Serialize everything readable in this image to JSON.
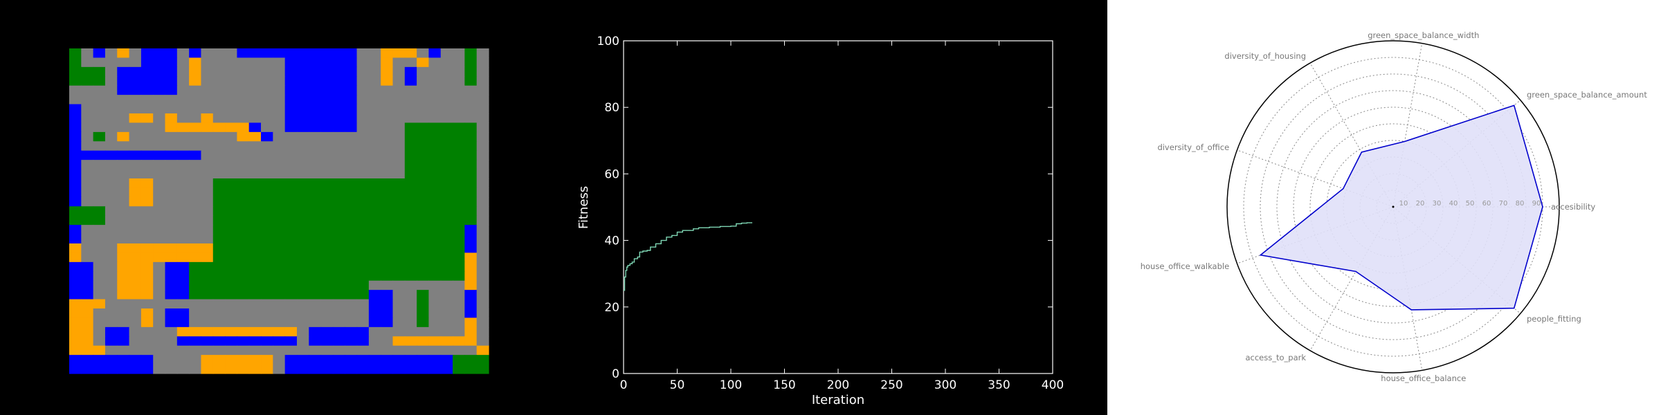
{
  "colors": {
    "road": "#808080",
    "housing": "#0000ff",
    "office": "#ffa500",
    "green": "#008000",
    "line": "#7fd7b5",
    "radar_line": "#0000cc",
    "radar_fill": "#e0e0f8"
  },
  "grid_map": {
    "legend": {
      "G": "green",
      "B": "housing",
      "O": "office",
      "R": "road"
    },
    "rows": [
      "GRBRORBBBRBRRRBBBBBBBBBBRROOORBRRG",
      "GRRRRRBBBRORRRRRRRBBBBBBRRORRORRRG",
      "GGGRBBBBBRORRRRRRRBBBBBBRRORBRRRRG",
      "GGGRBBBBBRORRRRRRRBBBBBBRRORBRRRRG",
      "RRRRBBBBBRRRRRRRRRBBBBBBRRRRRRRRRR",
      "RRRRRRRRRRRRRRRRRRBBBBBBRRRRRRRRRR",
      "BRRRRRRRRRRRRRRRRRBBBBBBRRRRRRRRRR",
      "BRRRROORORRORRRRRRBBBBBBRRRRRRRRRR",
      "BRRRRRRROOOOOOOBRRBBBBBBRRRRGGGGGG",
      "BRGRORRRRRRRRROOBRRRRRRRRRRRGGGGGG",
      "BRRRRRRRRRRRRRRRRRRRRRRRRRRRGGGGGG",
      "BBBBBBBBBBBRRRRRRRRRRRRRRRRRGGGGGG",
      "BRRRRRRRRRRRRRRRRRRRRRRRRRRRGGGGGG",
      "BRRRRRRRRRRRRRRRRRRRRRRRRRRRGGGGGG",
      "BRRRROORRRRRGGGGGGGGGGGGGGGGGGGGGG",
      "BRRRROORRRRRGGGGGGGGGGGGGGGGGGGGGG",
      "BRRRROORRRRRGGGGGGGGGGGGGGGGGGGGGG",
      "GGGRRRRRRRRRGGGGGGGGGGGGGGGGGGGGGG",
      "GGGRRRRRRRRRGGGGGGGGGGGGGGGGGGGGGG",
      "BRRRRRRRRRRRGGGGGGGGGGGGGGGGGGGGGB",
      "BRRRRRRRRRRRGGGGGGGGGGGGGGGGGGGGGB",
      "ORRROOOOOOOOGGGGGGGGGGGGGGGGGGGGGB",
      "ORRROOOOOOOOGGGGGGGGGGGGGGGGGGGGGO",
      "BBRROOORBBGGGGGGGGGGGGGGGGGGGGGGGO",
      "BBRROOORBBGGGGGGGGGGGGGGGGGGGGGGGO",
      "BBRROOORBBGGGGGGGGGGGGGGGRRRRRRRRO",
      "BBRROOORBBGGGGGGGGGGGGGGGBBRRGRRRB",
      "OOORRRRRRRRRRRRRRRRRRRRRRBBRRGRRRB",
      "OORRRRORBBRRRRRRRRRRRRRRRBBRRGRRRB",
      "OORRRRORBBRRRRRRRRRRRRRRRBBRRGRRRO",
      "OORBBRRRROOOOOOOOOORBBBBBRRRRRRRRO",
      "OORBBRRRRBBBBBBBBBBRBBBBBRROOOOOOO",
      "OOORRRRRRRRRRRRRRRRRRRRRRRRRRRRRRRO",
      "BBBBBBBRRRROOOOOORBBBBBBBBBBBBBBGGG",
      "BBBBBBBRRRROOOOOORBBBBBBBBBBBBBBGGG"
    ]
  },
  "chart_data": [
    {
      "type": "line",
      "title": "",
      "xlabel": "Iteration",
      "ylabel": "Fitness",
      "xlim": [
        0,
        400
      ],
      "ylim": [
        0,
        100
      ],
      "xticks": [
        "0",
        "50",
        "100",
        "150",
        "200",
        "250",
        "300",
        "350",
        "400"
      ],
      "yticks": [
        "0",
        "20",
        "40",
        "60",
        "80",
        "100"
      ],
      "grid": false,
      "x": [
        0,
        1,
        2,
        3,
        4,
        6,
        8,
        10,
        13,
        15,
        18,
        22,
        25,
        30,
        35,
        40,
        45,
        50,
        55,
        60,
        65,
        70,
        80,
        90,
        100,
        105,
        110,
        115,
        120
      ],
      "y": [
        25,
        29,
        31,
        32,
        32.5,
        33,
        33.5,
        34.5,
        35,
        36.5,
        36.8,
        37,
        38,
        39,
        40,
        41,
        41.5,
        42.5,
        43,
        43,
        43.5,
        43.8,
        44,
        44.2,
        44.3,
        45,
        45.2,
        45.3,
        45.3
      ]
    },
    {
      "type": "radar",
      "title": "",
      "axes": [
        "accesibility",
        "green_space_balance_amount",
        "green_space_balance_width",
        "diversity_of_housing",
        "diversity_of_office",
        "house_office_walkable",
        "access_to_park",
        "house_office_balance",
        "people_fitting"
      ],
      "radial_ticks": [
        "10",
        "20",
        "30",
        "40",
        "50",
        "60",
        "70",
        "80",
        "90"
      ],
      "rmax": 100,
      "grid": true,
      "values": [
        90,
        95,
        40,
        38,
        32,
        85,
        45,
        63,
        95
      ]
    }
  ]
}
